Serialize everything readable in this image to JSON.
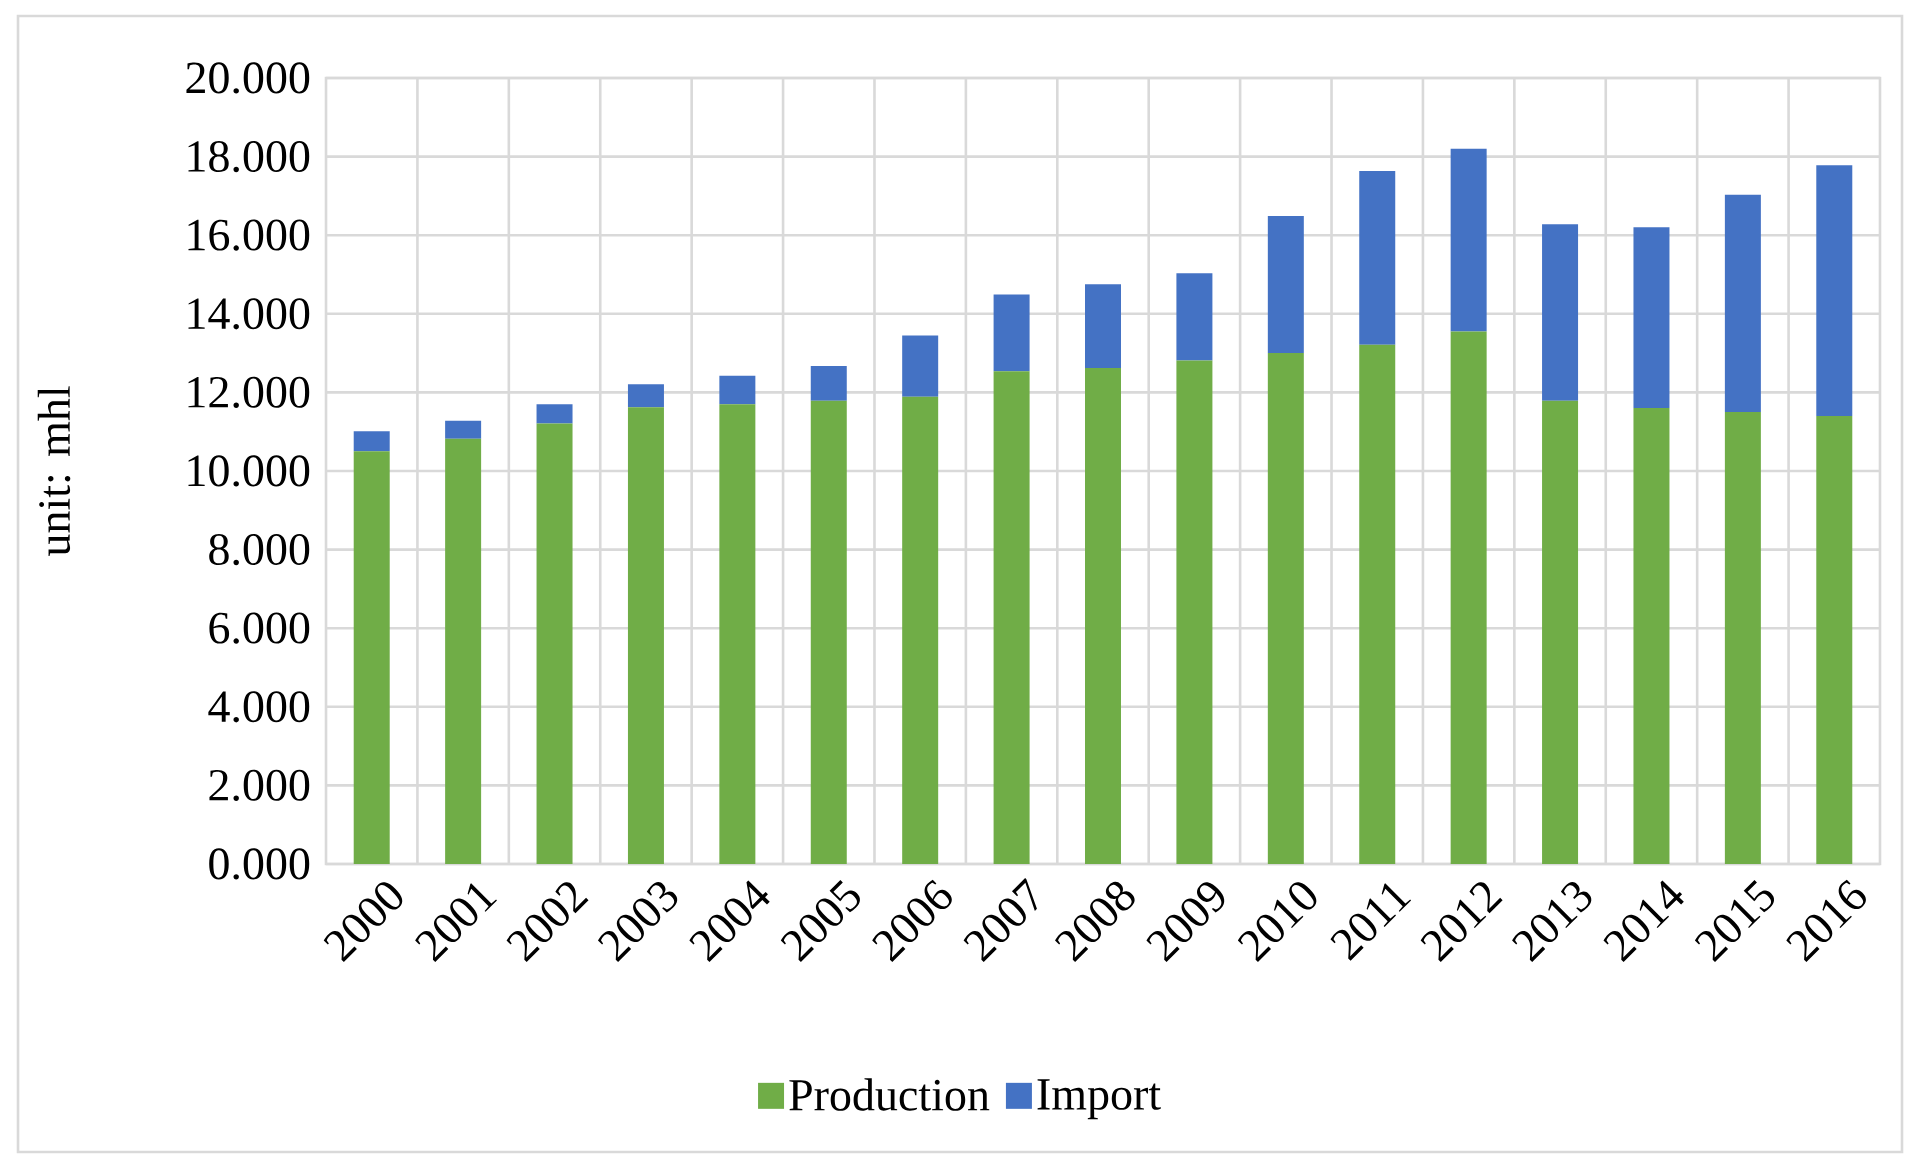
{
  "chart_data": {
    "type": "bar",
    "stacked": true,
    "ylabel": "unit: mhl",
    "categories": [
      "2000",
      "2001",
      "2002",
      "2003",
      "2004",
      "2005",
      "2006",
      "2007",
      "2008",
      "2009",
      "2010",
      "2011",
      "2012",
      "2013",
      "2014",
      "2015",
      "2016"
    ],
    "series": [
      {
        "name": "Production",
        "color": "#70ad47",
        "values": [
          10.5,
          10.82,
          11.21,
          11.62,
          11.7,
          11.79,
          11.89,
          12.54,
          12.62,
          12.81,
          13.0,
          13.21,
          13.55,
          11.79,
          11.6,
          11.5,
          11.4
        ]
      },
      {
        "name": "Import",
        "color": "#4472c4",
        "values": [
          0.51,
          0.46,
          0.49,
          0.59,
          0.72,
          0.88,
          1.56,
          1.95,
          2.13,
          2.22,
          3.49,
          4.42,
          4.65,
          4.49,
          4.6,
          5.53,
          6.38
        ]
      }
    ],
    "ylim": [
      0,
      20
    ],
    "yticks": [
      {
        "value": 0,
        "label": "0.000"
      },
      {
        "value": 2,
        "label": "2.000"
      },
      {
        "value": 4,
        "label": "4.000"
      },
      {
        "value": 6,
        "label": "6.000"
      },
      {
        "value": 8,
        "label": "8.000"
      },
      {
        "value": 10,
        "label": "10.000"
      },
      {
        "value": 12,
        "label": "12.000"
      },
      {
        "value": 14,
        "label": "14.000"
      },
      {
        "value": 16,
        "label": "16.000"
      },
      {
        "value": 18,
        "label": "18.000"
      },
      {
        "value": 20,
        "label": "20.000"
      }
    ],
    "grid": true,
    "legend": "bottom"
  }
}
